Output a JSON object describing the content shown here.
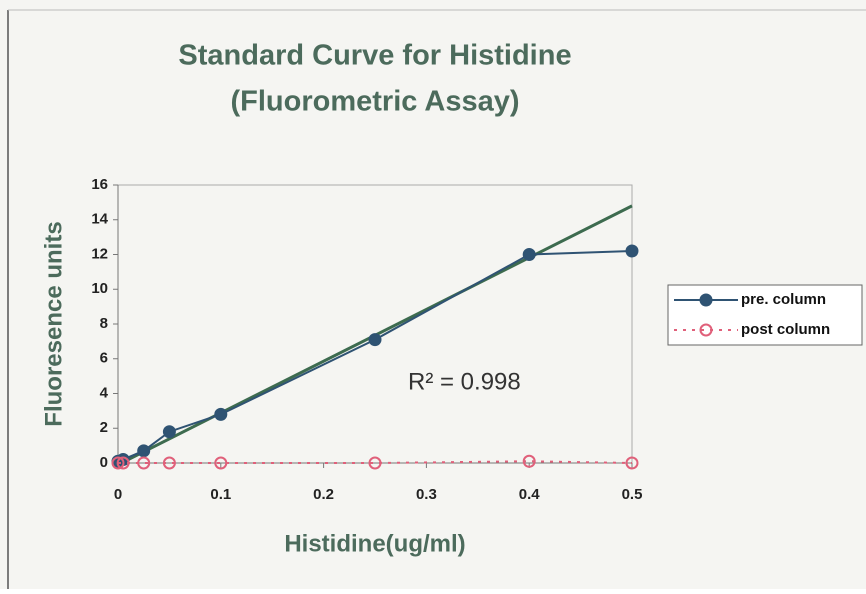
{
  "chart_data": {
    "type": "line",
    "title": [
      "Standard Curve for Histidine",
      "(Fluorometric Assay)"
    ],
    "x_label": "Histidine(ug/ml)",
    "y_label": "Fluoresence units",
    "annotation": "R² = 0.998",
    "x": [
      0,
      0.005,
      0.025,
      0.05,
      0.1,
      0.25,
      0.4,
      0.5
    ],
    "series": [
      {
        "name": "pre. column",
        "color": "#2f5373",
        "marker": "filled",
        "values": [
          0.1,
          0.2,
          0.7,
          1.8,
          2.8,
          7.1,
          12.0,
          12.2
        ]
      },
      {
        "name": "post column",
        "color": "#e0607a",
        "marker": "open",
        "dashed": true,
        "values": [
          0,
          0,
          0,
          0,
          0,
          0,
          0.1,
          0
        ]
      }
    ],
    "trendline": {
      "color": "#3d6b4f",
      "x": [
        0,
        0.5
      ],
      "values": [
        -0.1,
        14.8
      ]
    },
    "xlim": [
      0,
      0.5
    ],
    "xticks": [
      0,
      0.1,
      0.2,
      0.3,
      0.4,
      0.5
    ],
    "ylim": [
      0,
      16
    ],
    "yticks": [
      0,
      2,
      4,
      6,
      8,
      10,
      12,
      14,
      16
    ],
    "legend": "right"
  }
}
